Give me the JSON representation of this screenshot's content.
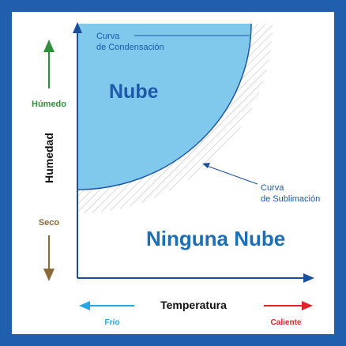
{
  "labels": {
    "condensation_curve": [
      "Curva",
      "de Condensación"
    ],
    "cloud": "Nube",
    "sublimation_curve": [
      "Curva",
      "de Sublimación"
    ],
    "no_cloud": "Ninguna Nube",
    "humid": "Húmedo",
    "humidity": "Humedad",
    "dry": "Seco",
    "temperature": "Temperatura",
    "cold": "Frío",
    "hot": "Caliente"
  }
}
